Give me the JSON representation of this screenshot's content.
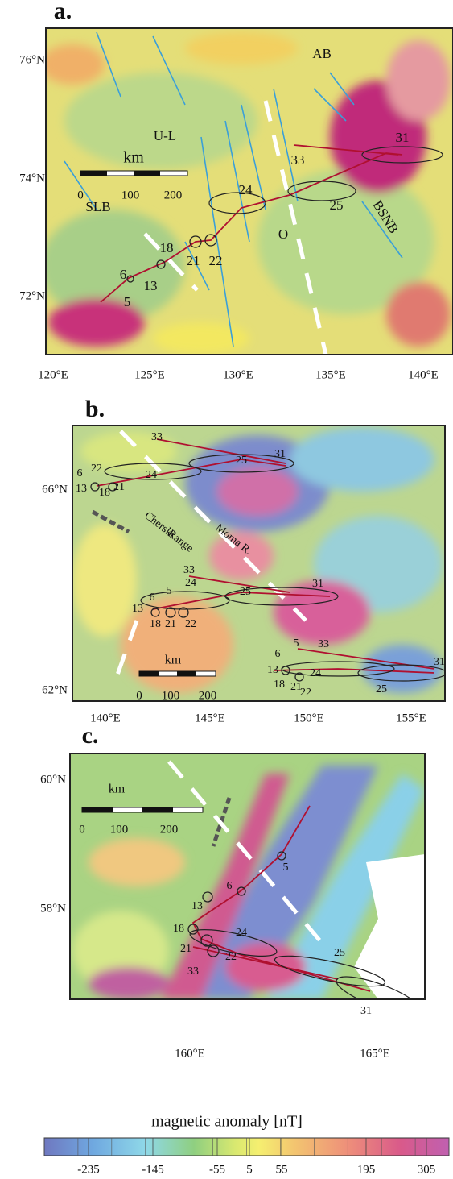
{
  "panels": [
    {
      "label": "a.",
      "lat_labels": [
        "76°N",
        "74°N",
        "72°N"
      ],
      "lon_labels": [
        "120°E",
        "125°E",
        "130°E",
        "135°E",
        "140°E"
      ],
      "annotations": [
        "AB",
        "U-L",
        "33",
        "31",
        "24",
        "25",
        "O",
        "BSNB",
        "SLB",
        "18",
        "21",
        "22",
        "13",
        "6",
        "5"
      ],
      "scale": {
        "unit": "km",
        "labels": [
          "0",
          "100",
          "200"
        ]
      }
    },
    {
      "label": "b.",
      "lat_labels": [
        "66°N",
        "62°N"
      ],
      "lon_labels": [
        "140°E",
        "145°E",
        "150°E",
        "155°E"
      ],
      "annotations": [
        "33",
        "25",
        "31",
        "22",
        "24",
        "6",
        "13",
        "18",
        "21",
        "Cherski",
        "Range",
        "Moma R.",
        "33",
        "24",
        "5",
        "6",
        "13",
        "18",
        "21",
        "22",
        "25",
        "31",
        "5",
        "33",
        "6",
        "13",
        "24",
        "18",
        "21",
        "22",
        "25",
        "31"
      ],
      "scale": {
        "unit": "km",
        "labels": [
          "0",
          "100",
          "200"
        ]
      }
    },
    {
      "label": "c.",
      "lat_labels": [
        "60°N",
        "58°N"
      ],
      "lon_labels": [
        "160°E",
        "165°E"
      ],
      "annotations": [
        "5",
        "6",
        "13",
        "18",
        "24",
        "21",
        "22",
        "33",
        "25",
        "31"
      ],
      "scale": {
        "unit": "km",
        "labels": [
          "0",
          "100",
          "200"
        ]
      }
    }
  ],
  "colorbar": {
    "title": "magnetic anomaly [nT]",
    "labels": [
      "-235",
      "-145",
      "-55",
      "5",
      "55",
      "195",
      "305"
    ]
  }
}
